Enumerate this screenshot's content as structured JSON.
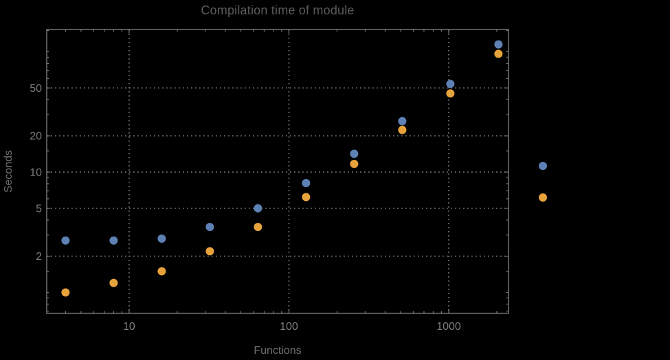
{
  "window": {
    "background_color": "#000000"
  },
  "styles": {
    "title_color": "#5c5c5c",
    "axis_label_color": "#707070",
    "tick_label_color": "#7d7d7d",
    "frame_color": "#7b7b7b",
    "grid_color": "#6f6f6f"
  },
  "chart_data": {
    "type": "scatter",
    "title": "Compilation time of module",
    "xlabel": "Functions",
    "ylabel": "Seconds",
    "x_scale": "log",
    "y_scale": "log",
    "xlim": [
      3.05,
      2367
    ],
    "ylim": [
      0.67,
      153
    ],
    "grid": {
      "style": "dotted",
      "x_values": [
        10,
        100,
        1000
      ],
      "y_values": [
        2,
        5,
        10,
        20,
        50
      ]
    },
    "x_ticks": {
      "major": [
        {
          "value": 10,
          "label": "10"
        },
        {
          "value": 100,
          "label": "100"
        },
        {
          "value": 1000,
          "label": "1000"
        }
      ],
      "minor": [
        4,
        5,
        6,
        7,
        8,
        9,
        20,
        30,
        40,
        50,
        60,
        70,
        80,
        90,
        200,
        300,
        400,
        500,
        600,
        700,
        800,
        900,
        2000
      ]
    },
    "y_ticks": {
      "major": [
        {
          "value": 2,
          "label": "2"
        },
        {
          "value": 5,
          "label": "5"
        },
        {
          "value": 10,
          "label": "10"
        },
        {
          "value": 20,
          "label": "20"
        },
        {
          "value": 50,
          "label": "50"
        }
      ],
      "minor": [
        0.7,
        0.8,
        0.9,
        1,
        1.5,
        3,
        4,
        6,
        7,
        8,
        9,
        15,
        30,
        40,
        60,
        70,
        80,
        90,
        100,
        150
      ]
    },
    "x": [
      4,
      8,
      16,
      32,
      64,
      128,
      256,
      512,
      1024,
      2048
    ],
    "series": [
      {
        "name": "series-1-blue",
        "color": "#5E81B5",
        "values": [
          2.7,
          2.7,
          2.8,
          3.5,
          5.0,
          8.1,
          14.2,
          26.5,
          54,
          115
        ]
      },
      {
        "name": "series-2-orange",
        "color": "#E7A33B",
        "values": [
          1.0,
          1.2,
          1.5,
          2.2,
          3.5,
          6.2,
          11.7,
          22.4,
          45,
          96
        ]
      }
    ],
    "marker": {
      "shape": "circle",
      "radius_px": 6
    },
    "legend": {
      "position": "outside-right",
      "labels_visible": false,
      "items": [
        {
          "marker_color": "#5E81B5",
          "label": ""
        },
        {
          "marker_color": "#E7A33B",
          "label": ""
        }
      ]
    }
  }
}
